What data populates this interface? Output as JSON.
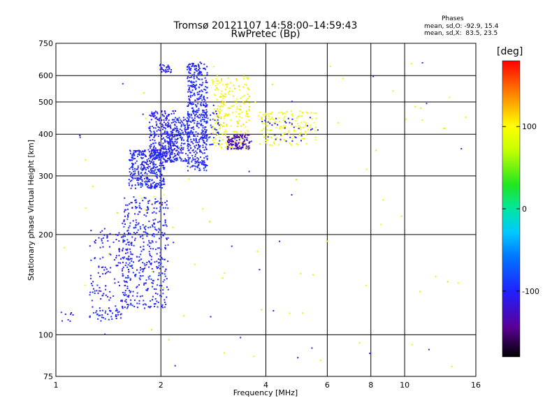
{
  "chart_data": {
    "type": "scatter",
    "title": "Tromsø 20121107 14:58:00–14:59:43",
    "subtitle": "RwPretec (Bp)",
    "xlabel": "Frequency [MHz]",
    "ylabel": "Stationary phase Virtual Height [km]",
    "x_scale": "log",
    "y_scale": "log",
    "xlim": [
      1,
      16
    ],
    "ylim": [
      75,
      750
    ],
    "x_ticks": [
      1,
      2,
      4,
      6,
      8,
      10,
      16
    ],
    "x_tick_labels": [
      "1",
      "2",
      "4",
      "6",
      "8",
      "10",
      "16"
    ],
    "y_ticks": [
      75,
      100,
      200,
      300,
      400,
      500,
      600,
      750
    ],
    "y_tick_labels": [
      "75",
      "100",
      "200",
      "300",
      "400",
      "500",
      "600",
      "750"
    ],
    "grid": true,
    "phase_stats": {
      "heading": "Phases",
      "line_o": "mean, sd,O: -92.9, 15.4",
      "line_x": "mean, sd,X:  83.5, 23.5"
    },
    "colorbar": {
      "unit": "[deg]",
      "range": [
        -180,
        180
      ],
      "ticks": [
        100,
        0,
        -100
      ],
      "tick_labels": [
        "100",
        "0",
        "-100"
      ]
    },
    "clusters": [
      {
        "f_range": [
          1.02,
          1.12
        ],
        "h_range": [
          108,
          118
        ],
        "phase": -100,
        "n": 8
      },
      {
        "f_range": [
          1.25,
          1.55
        ],
        "h_range": [
          110,
          122
        ],
        "phase": -100,
        "n": 45
      },
      {
        "f_range": [
          1.25,
          1.65
        ],
        "h_range": [
          125,
          210
        ],
        "phase": -105,
        "n": 140
      },
      {
        "f_range": [
          1.55,
          2.1
        ],
        "h_range": [
          120,
          260
        ],
        "phase": -100,
        "n": 420
      },
      {
        "f_range": [
          1.62,
          2.05
        ],
        "h_range": [
          275,
          360
        ],
        "phase": -100,
        "n": 360
      },
      {
        "f_range": [
          1.85,
          2.25
        ],
        "h_range": [
          330,
          470
        ],
        "phase": -105,
        "n": 280
      },
      {
        "f_range": [
          1.98,
          2.15
        ],
        "h_range": [
          610,
          650
        ],
        "phase": -100,
        "n": 30
      },
      {
        "f_range": [
          2.05,
          2.4
        ],
        "h_range": [
          330,
          450
        ],
        "phase": -100,
        "n": 180
      },
      {
        "f_range": [
          2.38,
          2.72
        ],
        "h_range": [
          310,
          660
        ],
        "phase": -100,
        "n": 470
      },
      {
        "f_range": [
          2.62,
          2.95
        ],
        "h_range": [
          370,
          470
        ],
        "phase": -95,
        "n": 60
      },
      {
        "f_range": [
          2.8,
          3.6
        ],
        "h_range": [
          360,
          600
        ],
        "phase": 100,
        "n": 240
      },
      {
        "f_range": [
          3.1,
          3.6
        ],
        "h_range": [
          360,
          400
        ],
        "phase": -130,
        "n": 120
      },
      {
        "f_range": [
          3.8,
          5.6
        ],
        "h_range": [
          370,
          470
        ],
        "phase": 95,
        "n": 150
      },
      {
        "f_range": [
          3.9,
          5.7
        ],
        "h_range": [
          380,
          450
        ],
        "phase": -110,
        "n": 35
      },
      {
        "f_range": [
          1.05,
          15.0
        ],
        "h_range": [
          80,
          660
        ],
        "phase": 80,
        "n": 70
      },
      {
        "f_range": [
          1.05,
          15.0
        ],
        "h_range": [
          80,
          660
        ],
        "phase": -100,
        "n": 30
      }
    ]
  }
}
